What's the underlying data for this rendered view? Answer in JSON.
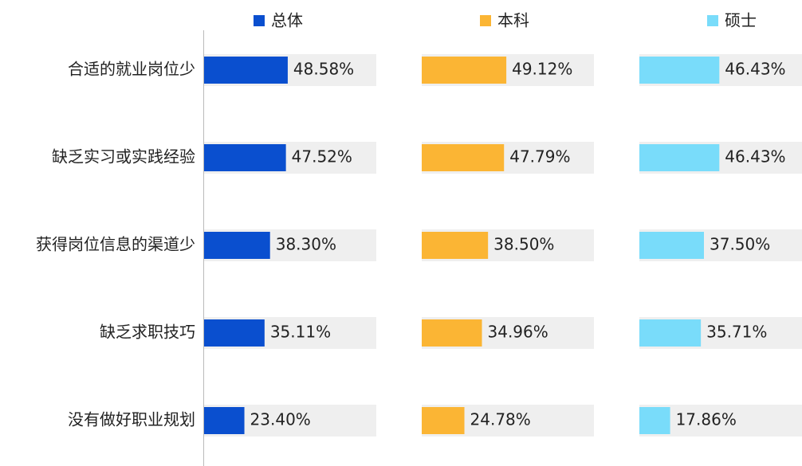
{
  "chart_data": {
    "type": "bar",
    "orientation": "horizontal",
    "categories": [
      "合适的就业岗位少",
      "缺乏实习或实践经验",
      "获得岗位信息的渠道少",
      "缺乏求职技巧",
      "没有做好职业规划"
    ],
    "xlim": [
      0,
      100
    ],
    "legend": "top",
    "series": [
      {
        "name": "总体",
        "color": "#0a4fcf",
        "values": [
          48.58,
          47.52,
          38.3,
          35.11,
          23.4
        ],
        "value_labels": [
          "48.58%",
          "47.52%",
          "38.30%",
          "35.11%",
          "23.40%"
        ]
      },
      {
        "name": "本科",
        "color": "#fbb534",
        "values": [
          49.12,
          47.79,
          38.5,
          34.96,
          24.78
        ],
        "value_labels": [
          "49.12%",
          "47.79%",
          "38.50%",
          "34.96%",
          "24.78%"
        ]
      },
      {
        "name": "硕士",
        "color": "#79dcfa",
        "values": [
          46.43,
          46.43,
          37.5,
          35.71,
          17.86
        ],
        "value_labels": [
          "46.43%",
          "46.43%",
          "37.50%",
          "35.71%",
          "17.86%"
        ]
      }
    ]
  }
}
